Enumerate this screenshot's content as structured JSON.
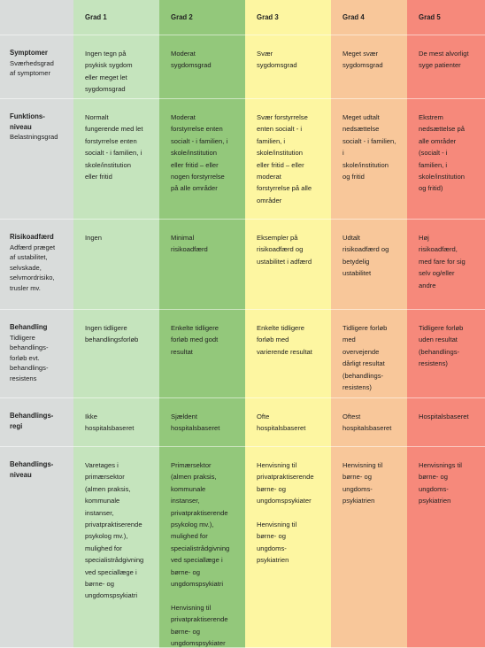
{
  "header": {
    "grades": [
      "Grad 1",
      "Grad 2",
      "Grad 3",
      "Grad 4",
      "Grad 5"
    ]
  },
  "rows": [
    {
      "title": "Symptomer",
      "subtitle": "Sværhedsgrad\naf symptomer",
      "cells": [
        "Ingen tegn på\npsykisk sygdom\neller meget let\nsygdomsgrad",
        "Moderat\nsygdomsgrad",
        "Svær\nsygdomsgrad",
        "Meget svær\nsygdomsgrad",
        "De mest alvorligt\nsyge patienter"
      ]
    },
    {
      "title": "Funktions-\nniveau",
      "subtitle": "Belastningsgrad",
      "cells": [
        "Normalt\nfungerende med let\nforstyrrelse enten\nsocialt - i familien, i\nskole/institution\neller fritid",
        "Moderat\nforstyrrelse enten\nsocialt - i familien, i\nskole/institution\neller fritid – eller\nnogen forstyrrelse\npå alle områder",
        "Svær forstyrrelse\nenten socialt - i\nfamilien, i\nskole/institution\neller fritid – eller\nmoderat\nforstyrrelse på alle\nområder",
        "Meget udtalt\nnedsættelse\nsocialt - i familien,\ni\nskole/institution\nog fritid",
        "Ekstrem\nnedsættelse på\nalle områder\n(socialt - i\nfamilien, i\nskole/institution\nog fritid)"
      ]
    },
    {
      "title": "Risikoadfærd",
      "subtitle": "Adfærd præget\naf ustabilitet,\nselvskade,\nselvmordrisiko,\ntrusler mv.",
      "cells": [
        "Ingen",
        "Minimal\nrisikoadfærd",
        "Eksempler på\nrisikoadfærd og\nustabilitet i adfærd",
        "Udtalt\nrisikoadfærd og\nbetydelig\nustabilitet",
        "Høj\nrisikoadfærd,\nmed fare for sig\nselv og/eller\nandre"
      ]
    },
    {
      "title": "Behandling",
      "subtitle": "Tidligere\nbehandlings-\nforløb evt.\nbehandlings-\nresistens",
      "cells": [
        "Ingen tidligere\nbehandlingsforløb",
        "Enkelte tidligere\nforløb med godt\nresultat",
        "Enkelte tidligere\nforløb med\nvarierende resultat",
        "Tidligere forløb\nmed\novervejende\ndårligt resultat\n(behandlings-\nresistens)",
        "Tidligere forløb\nuden resultat\n(behandlings-\nresistens)"
      ]
    },
    {
      "title": "Behandlings-\nregi",
      "cells": [
        "Ikke\nhospitalsbaseret",
        "Sjældent\nhospitalsbaseret",
        "Ofte\nhospitalsbaseret",
        "Oftest\nhospitalsbaseret",
        "Hospitalsbaseret"
      ]
    },
    {
      "title": "Behandlings-\nniveau",
      "cells": [
        "Varetages i\nprimærsektor\n(almen praksis,\nkommunale\ninstanser,\nprivatpraktiserende\npsykolog mv.),\nmulighed for\nspecialistrådgivning\nved speciallæge i\nbørne- og\nungdomspsykiatri",
        "Primærsektor\n(almen praksis,\nkommunale\ninstanser,\nprivatpraktiserende\npsykolog mv.),\nmulighed for\nspecialistrådgivning\nved speciallæge i\nbørne- og\nungdomspsykiatri\n\nHenvisning til\nprivatpraktiserende\nbørne- og\nungdomspsykiater",
        "Henvisning til\nprivatpraktiserende\nbørne- og\nungdomspsykiater\n\nHenvisning til\nbørne- og\nungdoms-\npsykiatrien",
        "Henvisning til\nbørne- og\nungdoms-\npsykiatrien",
        "Henvisnings til\nbørne- og\nungdoms-\npsykiatrien"
      ]
    }
  ]
}
